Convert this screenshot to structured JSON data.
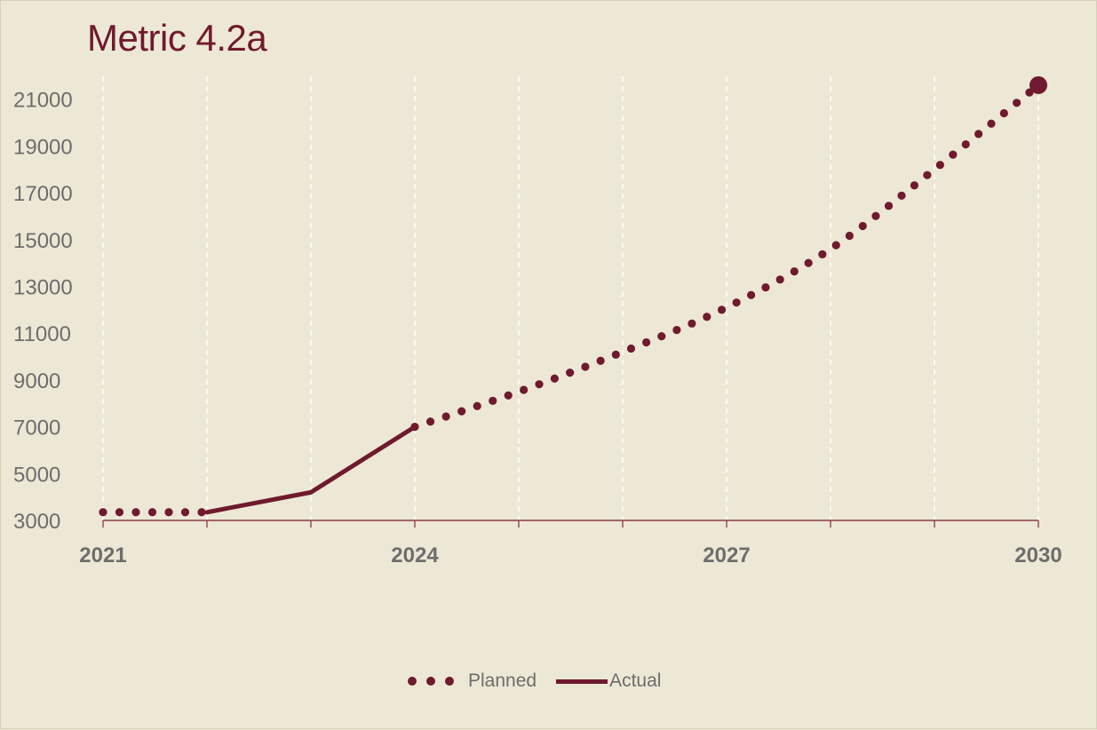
{
  "chart_data": {
    "type": "line",
    "title": "Metric 4.2a",
    "xlabel": "",
    "ylabel": "",
    "x_ticks": [
      "2021",
      "2024",
      "2027",
      "2030"
    ],
    "y_ticks": [
      "3000",
      "5000",
      "7000",
      "9000",
      "11000",
      "13000",
      "15000",
      "17000",
      "19000",
      "21000"
    ],
    "xlim": [
      2021,
      2030
    ],
    "ylim": [
      3000,
      22000
    ],
    "grid": "vertical dashed gridlines at each year",
    "legend_position": "bottom-center",
    "series": [
      {
        "name": "Planned",
        "style": "dotted",
        "x": [
          2021,
          2022,
          2023,
          2024,
          2025,
          2026,
          2027,
          2028,
          2029,
          2030
        ],
        "values": [
          3350,
          3350,
          null,
          7000,
          8500,
          10200,
          12100,
          14600,
          18000,
          21600
        ],
        "end_marker": true
      },
      {
        "name": "Actual",
        "style": "solid",
        "x": [
          2022,
          2023,
          2024
        ],
        "values": [
          3350,
          4200,
          7000
        ]
      }
    ],
    "colors": {
      "series": "#6f1a2e",
      "background": "#ede8d5",
      "grid": "#ffffff",
      "axis": "#8a3a4a",
      "text": "#6d6d6d"
    }
  }
}
